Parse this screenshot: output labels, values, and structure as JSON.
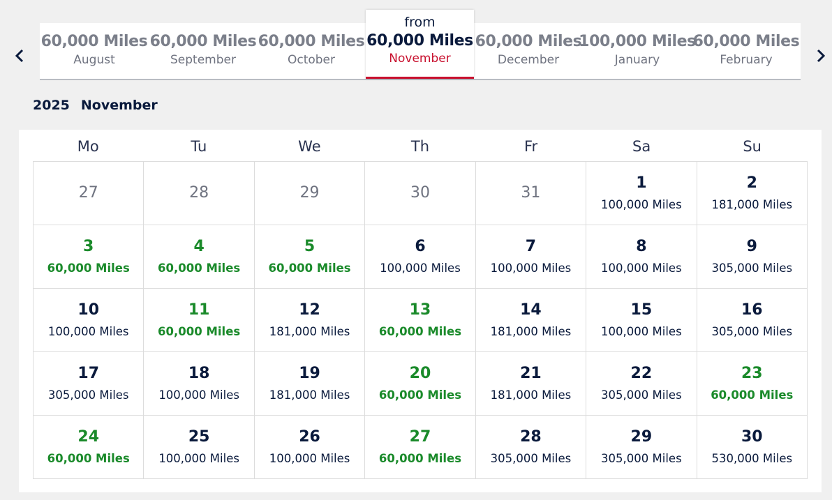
{
  "month_selector": {
    "prev_icon": "chevron-left-icon",
    "next_icon": "chevron-right-icon",
    "months": [
      {
        "price": "60,000 Miles",
        "name": "August"
      },
      {
        "price": "60,000 Miles",
        "name": "September"
      },
      {
        "price": "60,000 Miles",
        "name": "October"
      },
      {
        "price": "60,000 Miles",
        "name": "December"
      },
      {
        "price": "100,000 Miles",
        "name": "January"
      },
      {
        "price": "60,000 Miles",
        "name": "February"
      }
    ],
    "selected": {
      "from": "from",
      "price": "60,000 Miles",
      "name": "November"
    }
  },
  "calendar": {
    "year": "2025",
    "month": "November",
    "weekdays": [
      "Mo",
      "Tu",
      "We",
      "Th",
      "Fr",
      "Sa",
      "Su"
    ],
    "days": [
      {
        "day": "27",
        "miles": "",
        "state": "out"
      },
      {
        "day": "28",
        "miles": "",
        "state": "out"
      },
      {
        "day": "29",
        "miles": "",
        "state": "out"
      },
      {
        "day": "30",
        "miles": "",
        "state": "out"
      },
      {
        "day": "31",
        "miles": "",
        "state": "out"
      },
      {
        "day": "1",
        "miles": "100,000 Miles",
        "state": "normal"
      },
      {
        "day": "2",
        "miles": "181,000 Miles",
        "state": "normal"
      },
      {
        "day": "3",
        "miles": "60,000 Miles",
        "state": "low"
      },
      {
        "day": "4",
        "miles": "60,000 Miles",
        "state": "low"
      },
      {
        "day": "5",
        "miles": "60,000 Miles",
        "state": "low"
      },
      {
        "day": "6",
        "miles": "100,000 Miles",
        "state": "normal"
      },
      {
        "day": "7",
        "miles": "100,000 Miles",
        "state": "normal"
      },
      {
        "day": "8",
        "miles": "100,000 Miles",
        "state": "normal"
      },
      {
        "day": "9",
        "miles": "305,000 Miles",
        "state": "normal"
      },
      {
        "day": "10",
        "miles": "100,000 Miles",
        "state": "normal"
      },
      {
        "day": "11",
        "miles": "60,000 Miles",
        "state": "low"
      },
      {
        "day": "12",
        "miles": "181,000 Miles",
        "state": "normal"
      },
      {
        "day": "13",
        "miles": "60,000 Miles",
        "state": "low"
      },
      {
        "day": "14",
        "miles": "181,000 Miles",
        "state": "normal"
      },
      {
        "day": "15",
        "miles": "100,000 Miles",
        "state": "normal"
      },
      {
        "day": "16",
        "miles": "305,000 Miles",
        "state": "normal"
      },
      {
        "day": "17",
        "miles": "305,000 Miles",
        "state": "normal"
      },
      {
        "day": "18",
        "miles": "100,000 Miles",
        "state": "normal"
      },
      {
        "day": "19",
        "miles": "181,000 Miles",
        "state": "normal"
      },
      {
        "day": "20",
        "miles": "60,000 Miles",
        "state": "low"
      },
      {
        "day": "21",
        "miles": "181,000 Miles",
        "state": "normal"
      },
      {
        "day": "22",
        "miles": "305,000 Miles",
        "state": "normal"
      },
      {
        "day": "23",
        "miles": "60,000 Miles",
        "state": "low"
      },
      {
        "day": "24",
        "miles": "60,000 Miles",
        "state": "low"
      },
      {
        "day": "25",
        "miles": "100,000 Miles",
        "state": "normal"
      },
      {
        "day": "26",
        "miles": "100,000 Miles",
        "state": "normal"
      },
      {
        "day": "27",
        "miles": "60,000 Miles",
        "state": "low"
      },
      {
        "day": "28",
        "miles": "305,000 Miles",
        "state": "normal"
      },
      {
        "day": "29",
        "miles": "305,000 Miles",
        "state": "normal"
      },
      {
        "day": "30",
        "miles": "530,000 Miles",
        "state": "normal"
      }
    ]
  },
  "colors": {
    "accent_red": "#c8102e",
    "low_price_green": "#1a8a2a",
    "text_navy": "#0a1a3c",
    "muted_gray": "#6f7380"
  }
}
